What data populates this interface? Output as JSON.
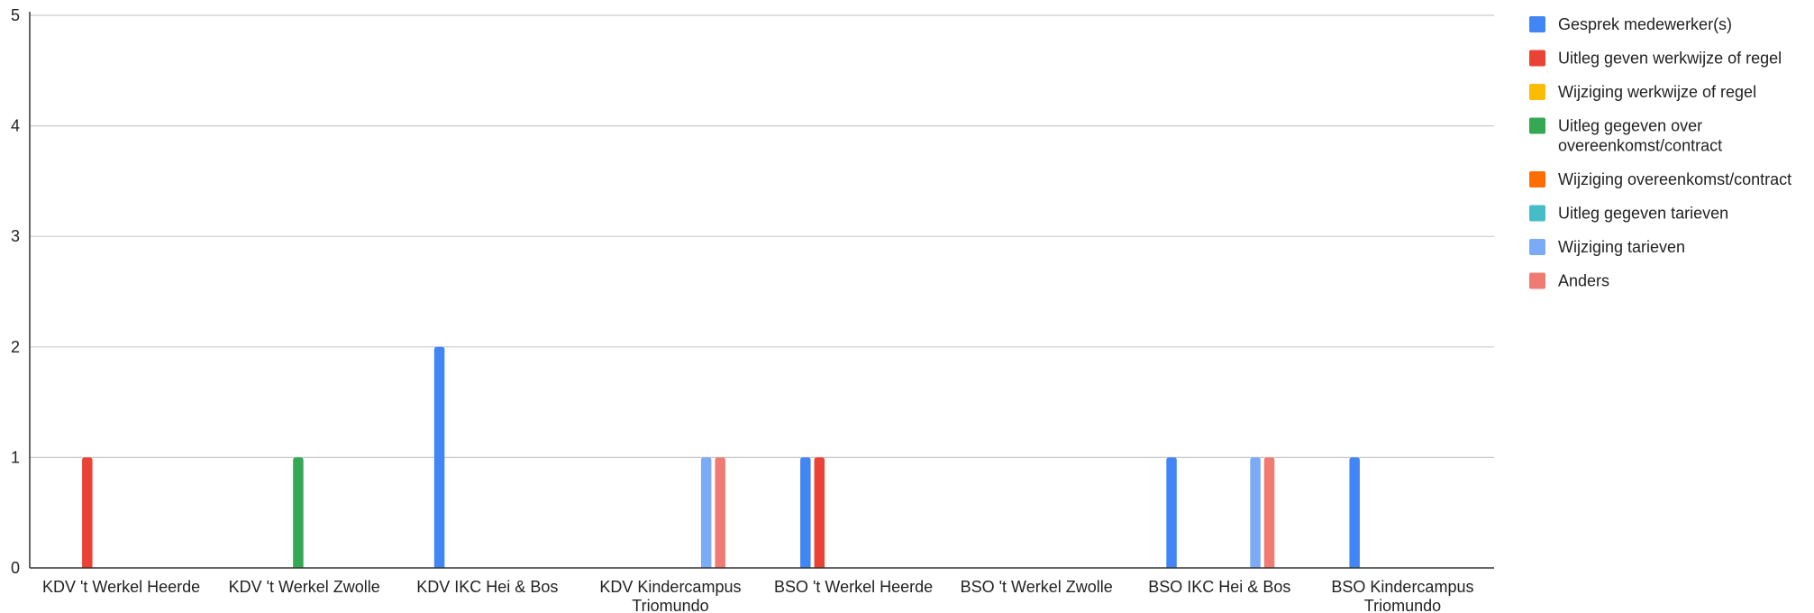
{
  "chart_data": {
    "type": "bar",
    "title": "",
    "xlabel": "",
    "ylabel": "",
    "ylim": [
      0,
      5
    ],
    "yticks": [
      0,
      1,
      2,
      3,
      4,
      5
    ],
    "grid": true,
    "legend_position": "right",
    "categories": [
      [
        "KDV 't Werkel Heerde"
      ],
      [
        "KDV 't Werkel Zwolle"
      ],
      [
        "KDV IKC Hei & Bos"
      ],
      [
        "KDV Kindercampus",
        "Triomundo"
      ],
      [
        "BSO 't Werkel Heerde"
      ],
      [
        "BSO 't Werkel Zwolle"
      ],
      [
        "BSO IKC Hei & Bos"
      ],
      [
        "BSO Kindercampus",
        "Triomundo"
      ]
    ],
    "series": [
      {
        "name": "Gesprek medewerker(s)",
        "legend_lines": [
          "Gesprek medewerker(s)"
        ],
        "color": "#4285f4",
        "values": [
          0,
          0,
          2,
          0,
          1,
          0,
          1,
          1
        ]
      },
      {
        "name": "Uitleg geven werkwijze of regel",
        "legend_lines": [
          "Uitleg geven werkwijze of regel"
        ],
        "color": "#ea4335",
        "values": [
          1,
          0,
          0,
          0,
          1,
          0,
          0,
          0
        ]
      },
      {
        "name": "Wijziging werkwijze of regel",
        "legend_lines": [
          "Wijziging werkwijze of regel"
        ],
        "color": "#fbbc04",
        "values": [
          0,
          0,
          0,
          0,
          0,
          0,
          0,
          0
        ]
      },
      {
        "name": "Uitleg gegeven over overeenkomst/contract",
        "legend_lines": [
          "Uitleg gegeven over",
          "overeenkomst/contract"
        ],
        "color": "#34a853",
        "values": [
          0,
          1,
          0,
          0,
          0,
          0,
          0,
          0
        ]
      },
      {
        "name": "Wijziging overeenkomst/contract",
        "legend_lines": [
          "Wijziging overeenkomst/contract"
        ],
        "color": "#ff6d01",
        "values": [
          0,
          0,
          0,
          0,
          0,
          0,
          0,
          0
        ]
      },
      {
        "name": "Uitleg gegeven tarieven",
        "legend_lines": [
          "Uitleg gegeven tarieven"
        ],
        "color": "#46bdc6",
        "values": [
          0,
          0,
          0,
          0,
          0,
          0,
          0,
          0
        ]
      },
      {
        "name": "Wijziging tarieven",
        "legend_lines": [
          "Wijziging tarieven"
        ],
        "color": "#7baaf7",
        "values": [
          0,
          0,
          0,
          1,
          0,
          0,
          1,
          0
        ]
      },
      {
        "name": "Anders",
        "legend_lines": [
          "Anders"
        ],
        "color": "#f07b72",
        "values": [
          0,
          0,
          0,
          1,
          0,
          0,
          1,
          0
        ]
      }
    ]
  }
}
